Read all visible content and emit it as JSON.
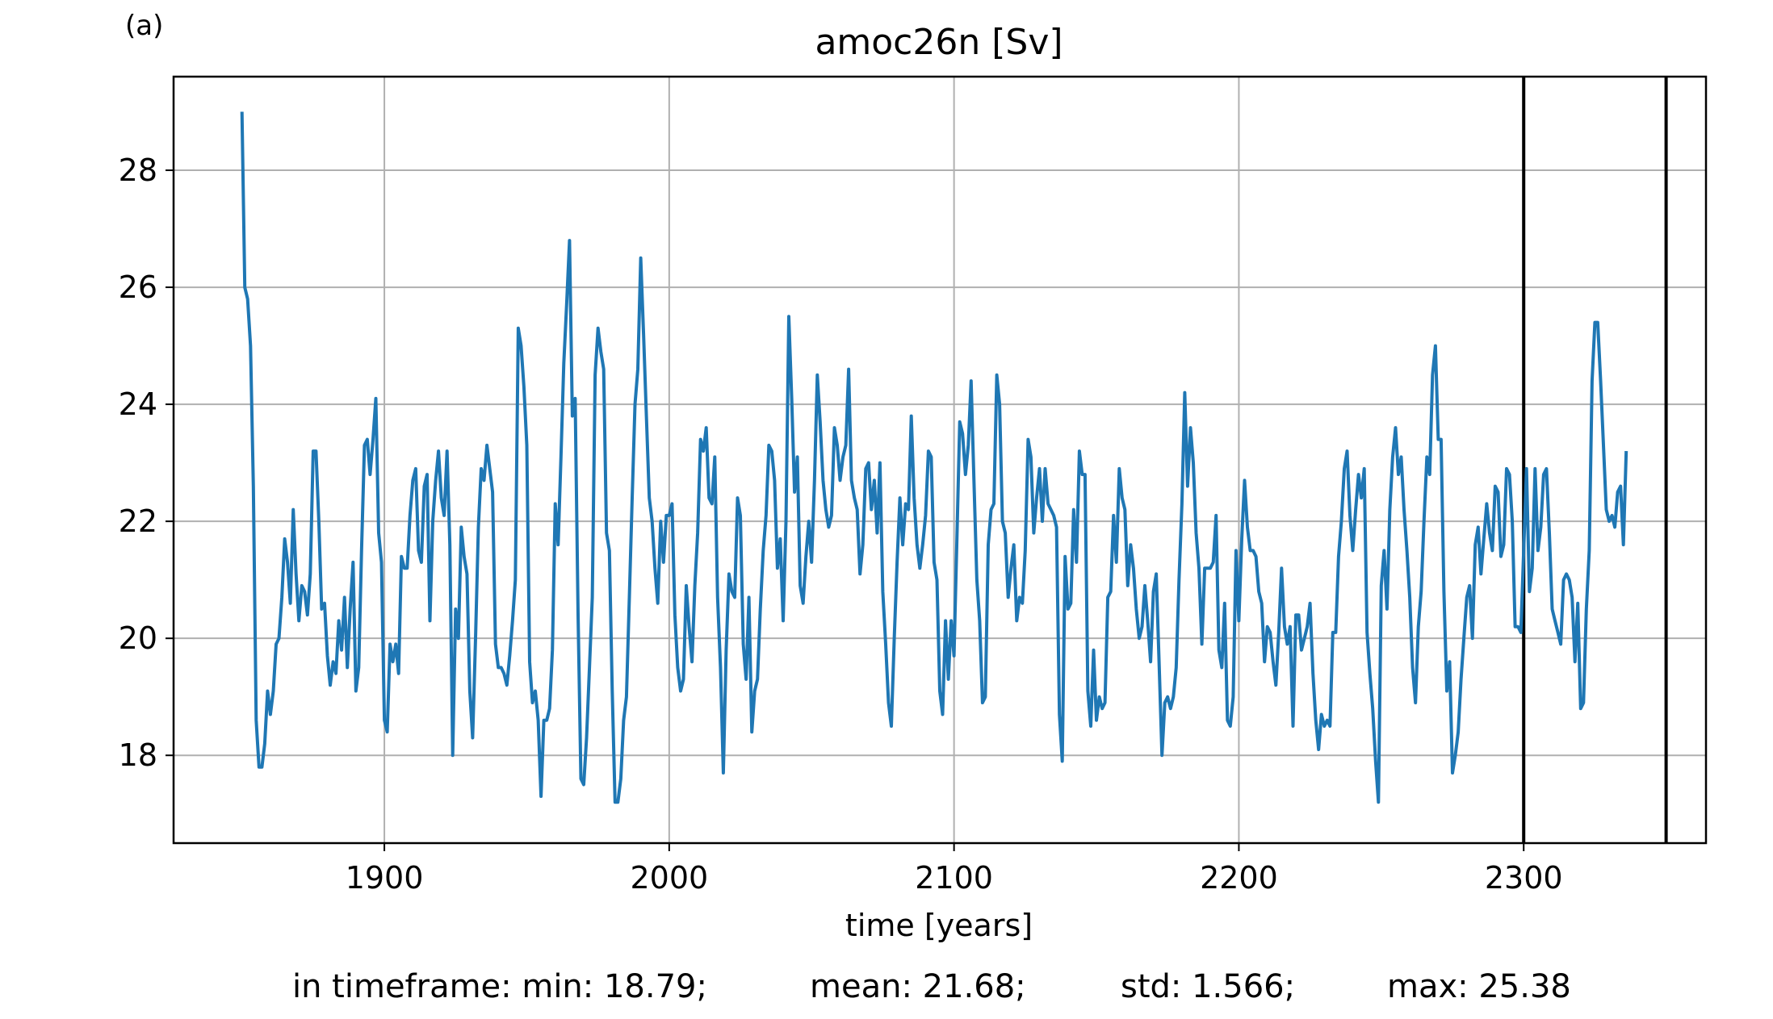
{
  "panel_label": "(a)",
  "stats": {
    "min": "in timeframe: min: 18.79;",
    "mean": "mean: 21.68;",
    "std": "std: 1.566;",
    "max": "max: 25.38"
  },
  "colors": {
    "series": "#1f77b4",
    "grid": "#b0b0b0",
    "marker_line": "#000000"
  },
  "chart_data": {
    "type": "line",
    "title": "amoc26n [Sv]",
    "xlabel": "time [years]",
    "ylabel": "",
    "xlim": [
      1826,
      2364
    ],
    "ylim": [
      16.5,
      29.6
    ],
    "xticks": [
      1900,
      2000,
      2100,
      2200,
      2300
    ],
    "yticks": [
      18,
      20,
      22,
      24,
      26,
      28
    ],
    "grid": true,
    "vertical_lines": [
      2300,
      2350
    ],
    "series": [
      {
        "x_start": 1850,
        "x_step": 1,
        "values": [
          29.0,
          26.0,
          25.8,
          25.0,
          22.6,
          18.6,
          17.8,
          17.8,
          18.2,
          19.1,
          18.7,
          19.1,
          19.9,
          20.0,
          20.7,
          21.7,
          21.3,
          20.6,
          22.2,
          21.1,
          20.3,
          20.9,
          20.8,
          20.4,
          21.1,
          23.2,
          23.2,
          22.0,
          20.5,
          20.6,
          19.7,
          19.2,
          19.6,
          19.4,
          20.3,
          19.8,
          20.7,
          19.5,
          20.5,
          21.3,
          19.1,
          19.5,
          21.5,
          23.3,
          23.4,
          22.8,
          23.4,
          24.1,
          21.8,
          21.3,
          18.6,
          18.4,
          19.9,
          19.6,
          19.9,
          19.4,
          21.4,
          21.2,
          21.2,
          22.1,
          22.7,
          22.9,
          21.5,
          21.3,
          22.6,
          22.8,
          20.3,
          22.0,
          22.7,
          23.2,
          22.4,
          22.1,
          23.2,
          21.6,
          18.0,
          20.5,
          20.0,
          21.9,
          21.4,
          21.1,
          19.1,
          18.3,
          20.0,
          21.9,
          22.9,
          22.7,
          23.3,
          22.9,
          22.5,
          19.9,
          19.5,
          19.5,
          19.4,
          19.2,
          19.7,
          20.3,
          21.0,
          25.3,
          25.0,
          24.3,
          23.3,
          19.6,
          18.9,
          19.1,
          18.6,
          17.3,
          18.6,
          18.6,
          18.8,
          19.8,
          22.3,
          21.6,
          23.1,
          24.7,
          25.7,
          26.8,
          23.8,
          24.1,
          20.4,
          17.6,
          17.5,
          18.3,
          19.5,
          20.7,
          24.5,
          25.3,
          24.9,
          24.6,
          21.8,
          21.5,
          19.1,
          17.2,
          17.2,
          17.6,
          18.6,
          19.0,
          20.7,
          22.4,
          24.0,
          24.6,
          26.5,
          25.2,
          23.8,
          22.4,
          22.0,
          21.2,
          20.6,
          22.0,
          21.3,
          22.1,
          22.1,
          22.3,
          20.4,
          19.5,
          19.1,
          19.3,
          20.9,
          20.2,
          19.6,
          20.9,
          21.8,
          23.4,
          23.2,
          23.6,
          22.4,
          22.3,
          23.1,
          20.7,
          19.5,
          17.7,
          19.8,
          21.1,
          20.8,
          20.7,
          22.4,
          22.1,
          19.9,
          19.3,
          20.7,
          18.4,
          19.1,
          19.3,
          20.5,
          21.5,
          22.1,
          23.3,
          23.2,
          22.7,
          21.2,
          21.7,
          20.3,
          22.0,
          25.5,
          24.1,
          22.5,
          23.1,
          20.9,
          20.6,
          21.4,
          22.0,
          21.3,
          22.7,
          24.5,
          23.7,
          22.7,
          22.2,
          21.9,
          22.1,
          23.6,
          23.3,
          22.7,
          23.1,
          23.3,
          24.6,
          22.7,
          22.4,
          22.2,
          21.1,
          21.6,
          22.9,
          23.0,
          22.2,
          22.7,
          21.8,
          23.0,
          20.8,
          19.9,
          18.9,
          18.5,
          20.0,
          21.3,
          22.4,
          21.6,
          22.3,
          22.2,
          23.8,
          22.4,
          21.6,
          21.2,
          21.6,
          22.1,
          23.2,
          23.1,
          21.3,
          21.0,
          19.1,
          18.7,
          20.3,
          19.3,
          20.3,
          19.7,
          21.7,
          23.7,
          23.5,
          22.8,
          23.3,
          24.4,
          22.7,
          21.0,
          20.3,
          18.9,
          19.0,
          21.6,
          22.2,
          22.3,
          24.5,
          24.0,
          22.0,
          21.8,
          20.7,
          21.2,
          21.6,
          20.3,
          20.7,
          20.6,
          21.5,
          23.4,
          23.1,
          21.8,
          22.4,
          22.9,
          22.0,
          22.9,
          22.3,
          22.2,
          22.1,
          21.9,
          18.7,
          17.9,
          21.4,
          20.5,
          20.6,
          22.2,
          21.3,
          23.2,
          22.8,
          22.8,
          19.1,
          18.5,
          19.8,
          18.6,
          19.0,
          18.8,
          18.9,
          20.7,
          20.8,
          22.1,
          21.3,
          22.9,
          22.4,
          22.2,
          20.9,
          21.6,
          21.2,
          20.5,
          20.0,
          20.2,
          20.9,
          20.3,
          19.6,
          20.8,
          21.1,
          19.6,
          18.0,
          18.9,
          19.0,
          18.8,
          19.0,
          19.5,
          21.0,
          22.3,
          24.2,
          22.6,
          23.6,
          23.0,
          21.8,
          21.2,
          19.9,
          21.2,
          21.2,
          21.2,
          21.3,
          22.1,
          19.8,
          19.5,
          20.6,
          18.6,
          18.5,
          19.0,
          21.5,
          20.3,
          21.7,
          22.7,
          21.9,
          21.5,
          21.5,
          21.4,
          20.8,
          20.6,
          19.6,
          20.2,
          20.1,
          19.6,
          19.2,
          20.1,
          21.2,
          20.2,
          19.9,
          20.2,
          18.5,
          20.4,
          20.4,
          19.8,
          20.0,
          20.2,
          20.6,
          19.4,
          18.6,
          18.1,
          18.7,
          18.5,
          18.6,
          18.5,
          20.1,
          20.1,
          21.4,
          22.0,
          22.9,
          23.2,
          22.1,
          21.5,
          22.2,
          22.8,
          22.4,
          22.9,
          20.1,
          19.4,
          18.8,
          17.9,
          17.2,
          20.9,
          21.5,
          20.5,
          22.2,
          23.1,
          23.6,
          22.8,
          23.1,
          22.2,
          21.5,
          20.7,
          19.5,
          18.9,
          20.2,
          20.8,
          22.0,
          23.1,
          22.8,
          24.5,
          25.0,
          23.4,
          23.4,
          20.8,
          19.1,
          19.6,
          17.7,
          18.0,
          18.4,
          19.3,
          20.0,
          20.7,
          20.9,
          20.0,
          21.6,
          21.9,
          21.1,
          21.7,
          22.3,
          21.8,
          21.5,
          22.6,
          22.5,
          21.4,
          21.6,
          22.9,
          22.8,
          22.0,
          20.2,
          20.2,
          20.1,
          21.5,
          22.9,
          20.8,
          21.2,
          22.9,
          21.5,
          21.9,
          22.8,
          22.9,
          21.8,
          20.5,
          20.3,
          20.1,
          19.9,
          21.0,
          21.1,
          21.0,
          20.7,
          19.6,
          20.6,
          18.8,
          18.9,
          20.5,
          21.5,
          24.4,
          25.4,
          25.4,
          24.4,
          23.3,
          22.2,
          22.0,
          22.1,
          21.9,
          22.5,
          22.6,
          21.6,
          23.2
        ]
      }
    ]
  }
}
